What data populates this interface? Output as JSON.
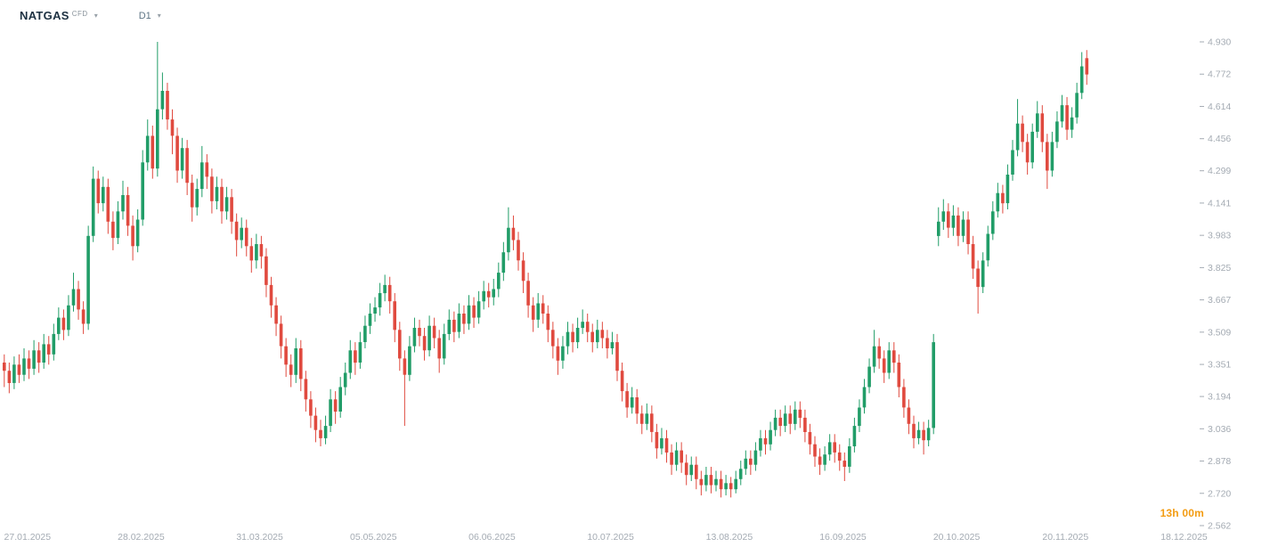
{
  "header": {
    "symbol": "NATGAS",
    "instrument_type": "CFD",
    "timeframe": "D1"
  },
  "countdown": "13h 00m",
  "colors": {
    "candle_up": "#219d68",
    "candle_down": "#e04a3f",
    "countdown_text": "#f39c12",
    "axis_text": "#a4abb3",
    "symbol_text": "#1d3142",
    "timeframe_text": "#5f7585"
  },
  "chart_data": {
    "type": "candlestick",
    "title": "NATGAS CFD, D1",
    "grid": "off",
    "price_axis": {
      "min": 2.562,
      "max": 4.93,
      "step": 0.158,
      "labels": [
        "4.930",
        "4.772",
        "4.614",
        "4.456",
        "4.299",
        "4.141",
        "3.983",
        "3.825",
        "3.667",
        "3.509",
        "3.351",
        "3.194",
        "3.036",
        "2.878",
        "2.720",
        "2.562"
      ]
    },
    "time_axis": {
      "labels": [
        {
          "text": "27.01.2025",
          "index": 5
        },
        {
          "text": "28.02.2025",
          "index": 28
        },
        {
          "text": "31.03.2025",
          "index": 52
        },
        {
          "text": "05.05.2025",
          "index": 75
        },
        {
          "text": "06.06.2025",
          "index": 99
        },
        {
          "text": "10.07.2025",
          "index": 123
        },
        {
          "text": "13.08.2025",
          "index": 147
        },
        {
          "text": "16.09.2025",
          "index": 170
        },
        {
          "text": "20.10.2025",
          "index": 193
        },
        {
          "text": "20.11.2025",
          "index": 215
        },
        {
          "text": "18.12.2025",
          "index": 239
        }
      ]
    },
    "candles": [
      [
        3.36,
        3.4,
        3.24,
        3.32
      ],
      [
        3.32,
        3.36,
        3.21,
        3.26
      ],
      [
        3.26,
        3.39,
        3.23,
        3.35
      ],
      [
        3.35,
        3.4,
        3.26,
        3.3
      ],
      [
        3.3,
        3.43,
        3.27,
        3.38
      ],
      [
        3.38,
        3.42,
        3.28,
        3.33
      ],
      [
        3.33,
        3.47,
        3.3,
        3.42
      ],
      [
        3.42,
        3.46,
        3.31,
        3.36
      ],
      [
        3.36,
        3.5,
        3.33,
        3.45
      ],
      [
        3.45,
        3.49,
        3.35,
        3.4
      ],
      [
        3.4,
        3.55,
        3.37,
        3.5
      ],
      [
        3.5,
        3.63,
        3.47,
        3.58
      ],
      [
        3.58,
        3.62,
        3.47,
        3.52
      ],
      [
        3.52,
        3.69,
        3.49,
        3.64
      ],
      [
        3.64,
        3.8,
        3.61,
        3.72
      ],
      [
        3.72,
        3.76,
        3.57,
        3.62
      ],
      [
        3.62,
        3.66,
        3.5,
        3.55
      ],
      [
        3.55,
        4.03,
        3.52,
        3.98
      ],
      [
        3.98,
        4.32,
        3.95,
        4.26
      ],
      [
        4.26,
        4.3,
        4.09,
        4.14
      ],
      [
        4.14,
        4.27,
        4.1,
        4.22
      ],
      [
        4.22,
        4.26,
        3.99,
        4.05
      ],
      [
        4.05,
        4.1,
        3.91,
        3.97
      ],
      [
        3.97,
        4.15,
        3.94,
        4.1
      ],
      [
        4.1,
        4.25,
        4.06,
        4.18
      ],
      [
        4.18,
        4.22,
        3.98,
        4.03
      ],
      [
        4.03,
        4.08,
        3.86,
        3.93
      ],
      [
        3.93,
        4.11,
        3.9,
        4.06
      ],
      [
        4.06,
        4.4,
        4.03,
        4.34
      ],
      [
        4.34,
        4.55,
        4.3,
        4.47
      ],
      [
        4.47,
        4.52,
        4.26,
        4.31
      ],
      [
        4.31,
        4.93,
        4.27,
        4.6
      ],
      [
        4.6,
        4.78,
        4.55,
        4.69
      ],
      [
        4.69,
        4.73,
        4.5,
        4.55
      ],
      [
        4.55,
        4.6,
        4.38,
        4.47
      ],
      [
        4.47,
        4.51,
        4.24,
        4.3
      ],
      [
        4.3,
        4.46,
        4.26,
        4.41
      ],
      [
        4.41,
        4.45,
        4.18,
        4.24
      ],
      [
        4.24,
        4.28,
        4.05,
        4.12
      ],
      [
        4.12,
        4.26,
        4.08,
        4.21
      ],
      [
        4.21,
        4.42,
        4.17,
        4.34
      ],
      [
        4.34,
        4.38,
        4.21,
        4.27
      ],
      [
        4.27,
        4.31,
        4.09,
        4.15
      ],
      [
        4.15,
        4.27,
        4.11,
        4.22
      ],
      [
        4.22,
        4.26,
        4.04,
        4.1
      ],
      [
        4.1,
        4.22,
        4.06,
        4.17
      ],
      [
        4.17,
        4.21,
        3.99,
        4.05
      ],
      [
        4.05,
        4.09,
        3.88,
        3.96
      ],
      [
        3.96,
        4.07,
        3.92,
        4.02
      ],
      [
        4.02,
        4.06,
        3.88,
        3.93
      ],
      [
        3.93,
        3.97,
        3.8,
        3.86
      ],
      [
        3.86,
        3.99,
        3.82,
        3.94
      ],
      [
        3.94,
        3.98,
        3.82,
        3.88
      ],
      [
        3.88,
        3.92,
        3.68,
        3.74
      ],
      [
        3.74,
        3.78,
        3.58,
        3.64
      ],
      [
        3.64,
        3.68,
        3.49,
        3.55
      ],
      [
        3.55,
        3.59,
        3.38,
        3.44
      ],
      [
        3.44,
        3.48,
        3.29,
        3.35
      ],
      [
        3.35,
        3.4,
        3.24,
        3.3
      ],
      [
        3.3,
        3.48,
        3.26,
        3.43
      ],
      [
        3.43,
        3.47,
        3.22,
        3.28
      ],
      [
        3.28,
        3.32,
        3.12,
        3.18
      ],
      [
        3.18,
        3.22,
        3.04,
        3.1
      ],
      [
        3.1,
        3.14,
        2.97,
        3.03
      ],
      [
        3.03,
        3.08,
        2.95,
        2.99
      ],
      [
        2.99,
        3.1,
        2.96,
        3.05
      ],
      [
        3.05,
        3.23,
        3.02,
        3.18
      ],
      [
        3.18,
        3.22,
        3.06,
        3.12
      ],
      [
        3.12,
        3.29,
        3.09,
        3.24
      ],
      [
        3.24,
        3.36,
        3.2,
        3.31
      ],
      [
        3.31,
        3.47,
        3.28,
        3.42
      ],
      [
        3.42,
        3.46,
        3.3,
        3.36
      ],
      [
        3.36,
        3.51,
        3.33,
        3.46
      ],
      [
        3.46,
        3.59,
        3.43,
        3.54
      ],
      [
        3.54,
        3.65,
        3.5,
        3.6
      ],
      [
        3.6,
        3.68,
        3.56,
        3.63
      ],
      [
        3.63,
        3.75,
        3.59,
        3.7
      ],
      [
        3.7,
        3.79,
        3.66,
        3.74
      ],
      [
        3.74,
        3.78,
        3.6,
        3.66
      ],
      [
        3.66,
        3.7,
        3.46,
        3.52
      ],
      [
        3.52,
        3.56,
        3.32,
        3.38
      ],
      [
        3.38,
        3.42,
        3.05,
        3.3
      ],
      [
        3.3,
        3.49,
        3.27,
        3.44
      ],
      [
        3.44,
        3.58,
        3.41,
        3.53
      ],
      [
        3.53,
        3.57,
        3.44,
        3.49
      ],
      [
        3.49,
        3.53,
        3.37,
        3.42
      ],
      [
        3.42,
        3.59,
        3.39,
        3.54
      ],
      [
        3.54,
        3.58,
        3.43,
        3.48
      ],
      [
        3.48,
        3.52,
        3.31,
        3.38
      ],
      [
        3.38,
        3.55,
        3.35,
        3.5
      ],
      [
        3.5,
        3.62,
        3.47,
        3.57
      ],
      [
        3.57,
        3.61,
        3.46,
        3.51
      ],
      [
        3.51,
        3.65,
        3.48,
        3.6
      ],
      [
        3.6,
        3.64,
        3.5,
        3.55
      ],
      [
        3.55,
        3.69,
        3.52,
        3.64
      ],
      [
        3.64,
        3.68,
        3.53,
        3.58
      ],
      [
        3.58,
        3.71,
        3.55,
        3.66
      ],
      [
        3.66,
        3.76,
        3.62,
        3.71
      ],
      [
        3.71,
        3.75,
        3.63,
        3.68
      ],
      [
        3.68,
        3.77,
        3.64,
        3.72
      ],
      [
        3.72,
        3.85,
        3.68,
        3.8
      ],
      [
        3.8,
        3.95,
        3.76,
        3.9
      ],
      [
        3.9,
        4.12,
        3.86,
        4.02
      ],
      [
        4.02,
        4.08,
        3.91,
        3.96
      ],
      [
        3.96,
        4.0,
        3.81,
        3.86
      ],
      [
        3.86,
        3.9,
        3.7,
        3.76
      ],
      [
        3.76,
        3.8,
        3.58,
        3.64
      ],
      [
        3.64,
        3.68,
        3.51,
        3.57
      ],
      [
        3.57,
        3.7,
        3.53,
        3.65
      ],
      [
        3.65,
        3.69,
        3.55,
        3.6
      ],
      [
        3.6,
        3.64,
        3.46,
        3.52
      ],
      [
        3.52,
        3.56,
        3.38,
        3.44
      ],
      [
        3.44,
        3.48,
        3.3,
        3.37
      ],
      [
        3.37,
        3.49,
        3.33,
        3.44
      ],
      [
        3.44,
        3.56,
        3.4,
        3.51
      ],
      [
        3.51,
        3.55,
        3.41,
        3.46
      ],
      [
        3.46,
        3.58,
        3.43,
        3.53
      ],
      [
        3.53,
        3.62,
        3.5,
        3.56
      ],
      [
        3.56,
        3.6,
        3.46,
        3.51
      ],
      [
        3.51,
        3.55,
        3.41,
        3.46
      ],
      [
        3.46,
        3.57,
        3.43,
        3.52
      ],
      [
        3.52,
        3.56,
        3.43,
        3.48
      ],
      [
        3.48,
        3.52,
        3.38,
        3.43
      ],
      [
        3.43,
        3.51,
        3.4,
        3.46
      ],
      [
        3.46,
        3.5,
        3.27,
        3.32
      ],
      [
        3.32,
        3.36,
        3.17,
        3.22
      ],
      [
        3.22,
        3.26,
        3.09,
        3.14
      ],
      [
        3.14,
        3.24,
        3.11,
        3.19
      ],
      [
        3.19,
        3.23,
        3.06,
        3.11
      ],
      [
        3.11,
        3.15,
        3.01,
        3.06
      ],
      [
        3.06,
        3.16,
        3.03,
        3.11
      ],
      [
        3.11,
        3.15,
        2.97,
        3.02
      ],
      [
        3.02,
        3.06,
        2.89,
        2.94
      ],
      [
        2.94,
        3.04,
        2.91,
        2.99
      ],
      [
        2.99,
        3.03,
        2.87,
        2.92
      ],
      [
        2.92,
        2.96,
        2.81,
        2.86
      ],
      [
        2.86,
        2.97,
        2.83,
        2.93
      ],
      [
        2.93,
        2.97,
        2.82,
        2.87
      ],
      [
        2.87,
        2.91,
        2.76,
        2.81
      ],
      [
        2.81,
        2.9,
        2.78,
        2.86
      ],
      [
        2.86,
        2.9,
        2.74,
        2.79
      ],
      [
        2.79,
        2.83,
        2.71,
        2.76
      ],
      [
        2.76,
        2.85,
        2.73,
        2.81
      ],
      [
        2.81,
        2.85,
        2.72,
        2.76
      ],
      [
        2.76,
        2.83,
        2.73,
        2.79
      ],
      [
        2.79,
        2.83,
        2.7,
        2.74
      ],
      [
        2.74,
        2.81,
        2.71,
        2.77
      ],
      [
        2.77,
        2.8,
        2.7,
        2.74
      ],
      [
        2.74,
        2.83,
        2.72,
        2.79
      ],
      [
        2.79,
        2.88,
        2.76,
        2.84
      ],
      [
        2.84,
        2.93,
        2.81,
        2.89
      ],
      [
        2.89,
        2.93,
        2.81,
        2.86
      ],
      [
        2.86,
        2.97,
        2.83,
        2.93
      ],
      [
        2.93,
        3.03,
        2.9,
        2.99
      ],
      [
        2.99,
        3.03,
        2.91,
        2.96
      ],
      [
        2.96,
        3.07,
        2.93,
        3.03
      ],
      [
        3.03,
        3.13,
        3.0,
        3.09
      ],
      [
        3.09,
        3.13,
        3.0,
        3.05
      ],
      [
        3.05,
        3.15,
        3.02,
        3.11
      ],
      [
        3.11,
        3.15,
        3.01,
        3.06
      ],
      [
        3.06,
        3.17,
        3.03,
        3.13
      ],
      [
        3.13,
        3.17,
        3.04,
        3.09
      ],
      [
        3.09,
        3.13,
        2.97,
        3.02
      ],
      [
        3.02,
        3.06,
        2.91,
        2.96
      ],
      [
        2.96,
        3.0,
        2.85,
        2.9
      ],
      [
        2.9,
        2.94,
        2.81,
        2.86
      ],
      [
        2.86,
        2.95,
        2.83,
        2.91
      ],
      [
        2.91,
        3.01,
        2.88,
        2.97
      ],
      [
        2.97,
        3.01,
        2.87,
        2.92
      ],
      [
        2.92,
        2.96,
        2.83,
        2.88
      ],
      [
        2.88,
        2.92,
        2.78,
        2.85
      ],
      [
        2.85,
        2.99,
        2.82,
        2.95
      ],
      [
        2.95,
        3.09,
        2.92,
        3.05
      ],
      [
        3.05,
        3.18,
        3.02,
        3.14
      ],
      [
        3.14,
        3.28,
        3.11,
        3.24
      ],
      [
        3.24,
        3.38,
        3.21,
        3.34
      ],
      [
        3.34,
        3.52,
        3.31,
        3.44
      ],
      [
        3.44,
        3.48,
        3.33,
        3.38
      ],
      [
        3.38,
        3.42,
        3.26,
        3.31
      ],
      [
        3.31,
        3.46,
        3.28,
        3.42
      ],
      [
        3.42,
        3.46,
        3.31,
        3.36
      ],
      [
        3.36,
        3.4,
        3.19,
        3.24
      ],
      [
        3.24,
        3.28,
        3.09,
        3.14
      ],
      [
        3.14,
        3.18,
        3.01,
        3.06
      ],
      [
        3.06,
        3.1,
        2.94,
        2.99
      ],
      [
        2.99,
        3.07,
        2.96,
        3.03
      ],
      [
        3.03,
        3.07,
        2.91,
        2.98
      ],
      [
        2.98,
        3.08,
        2.95,
        3.04
      ],
      [
        3.04,
        3.5,
        3.01,
        3.46
      ],
      [
        3.98,
        4.12,
        3.93,
        4.05
      ],
      [
        4.05,
        4.16,
        4.01,
        4.1
      ],
      [
        4.1,
        4.14,
        3.97,
        4.02
      ],
      [
        4.02,
        4.13,
        3.98,
        4.08
      ],
      [
        4.08,
        4.12,
        3.93,
        3.98
      ],
      [
        3.98,
        4.1,
        3.95,
        4.06
      ],
      [
        4.06,
        4.1,
        3.89,
        3.94
      ],
      [
        3.94,
        3.98,
        3.77,
        3.82
      ],
      [
        3.82,
        3.86,
        3.6,
        3.73
      ],
      [
        3.73,
        3.9,
        3.7,
        3.86
      ],
      [
        3.86,
        4.03,
        3.83,
        3.99
      ],
      [
        3.99,
        4.15,
        3.96,
        4.1
      ],
      [
        4.1,
        4.24,
        4.07,
        4.19
      ],
      [
        4.19,
        4.23,
        4.09,
        4.14
      ],
      [
        4.14,
        4.33,
        4.11,
        4.28
      ],
      [
        4.28,
        4.45,
        4.25,
        4.4
      ],
      [
        4.4,
        4.65,
        4.37,
        4.53
      ],
      [
        4.53,
        4.57,
        4.39,
        4.44
      ],
      [
        4.44,
        4.48,
        4.28,
        4.34
      ],
      [
        4.34,
        4.53,
        4.31,
        4.49
      ],
      [
        4.49,
        4.64,
        4.46,
        4.58
      ],
      [
        4.58,
        4.62,
        4.39,
        4.44
      ],
      [
        4.44,
        4.48,
        4.21,
        4.3
      ],
      [
        4.3,
        4.49,
        4.27,
        4.44
      ],
      [
        4.44,
        4.59,
        4.41,
        4.54
      ],
      [
        4.54,
        4.67,
        4.51,
        4.62
      ],
      [
        4.62,
        4.66,
        4.45,
        4.5
      ],
      [
        4.5,
        4.61,
        4.46,
        4.56
      ],
      [
        4.56,
        4.73,
        4.53,
        4.68
      ],
      [
        4.68,
        4.88,
        4.65,
        4.81
      ],
      [
        4.85,
        4.89,
        4.72,
        4.77
      ]
    ],
    "countdown": "13h 00m"
  }
}
